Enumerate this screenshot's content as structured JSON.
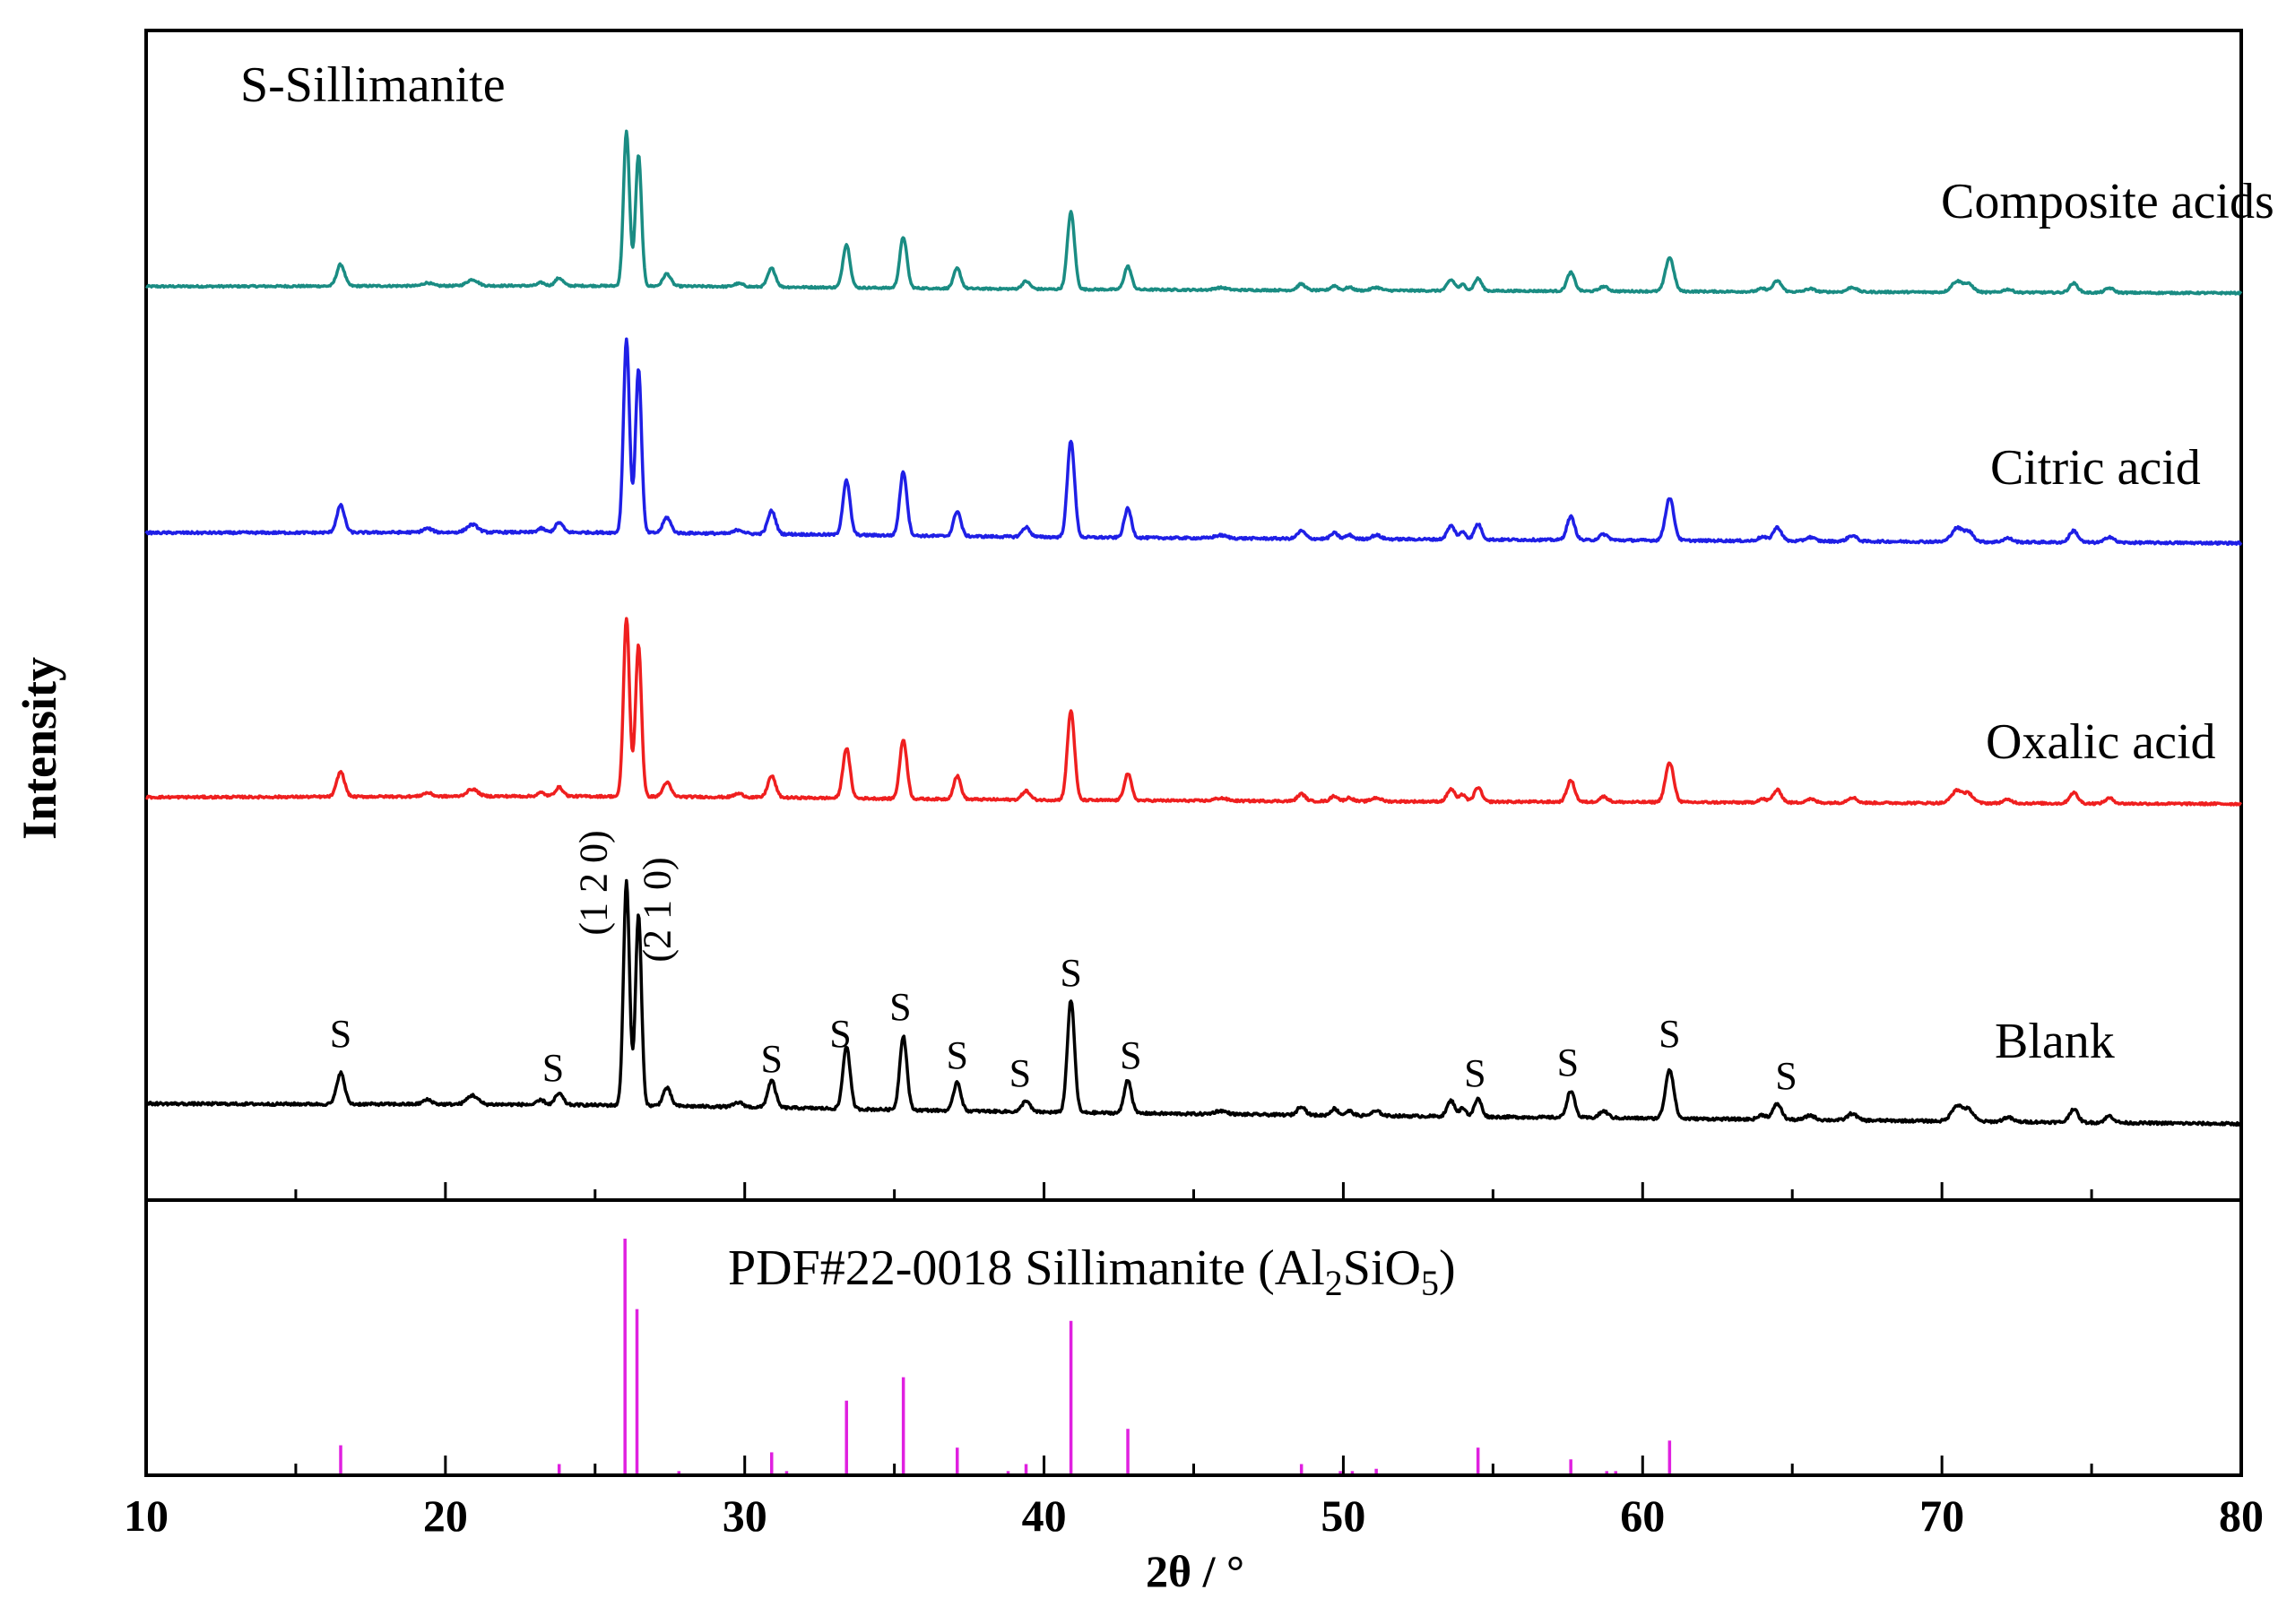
{
  "chart_data": {
    "type": "line",
    "title": "S-Sillimanite",
    "xlabel": "2θ / °",
    "ylabel": "Intensity",
    "xlim": [
      10,
      80
    ],
    "xticks": [
      "10",
      "20",
      "30",
      "40",
      "50",
      "60",
      "70",
      "80"
    ],
    "colors": {
      "composite": "#1a8c83",
      "citric": "#1f1fe6",
      "oxalic": "#ef1f1f",
      "blank": "#000000",
      "reference": "#e020e0"
    },
    "peaks": [
      {
        "two_theta": 16.5,
        "rel": 0.14,
        "w": 0.13
      },
      {
        "two_theta": 19.4,
        "rel": 0.02,
        "w": 0.15
      },
      {
        "two_theta": 20.9,
        "rel": 0.04,
        "w": 0.18
      },
      {
        "two_theta": 23.2,
        "rel": 0.02,
        "w": 0.12
      },
      {
        "two_theta": 23.8,
        "rel": 0.05,
        "w": 0.13
      },
      {
        "two_theta": 26.05,
        "rel": 1.0,
        "w": 0.1
      },
      {
        "two_theta": 26.45,
        "rel": 0.85,
        "w": 0.1
      },
      {
        "two_theta": 27.4,
        "rel": 0.08,
        "w": 0.13
      },
      {
        "two_theta": 29.8,
        "rel": 0.02,
        "w": 0.15
      },
      {
        "two_theta": 30.9,
        "rel": 0.12,
        "w": 0.13
      },
      {
        "two_theta": 33.4,
        "rel": 0.28,
        "w": 0.12
      },
      {
        "two_theta": 35.3,
        "rel": 0.33,
        "w": 0.12
      },
      {
        "two_theta": 37.1,
        "rel": 0.13,
        "w": 0.12
      },
      {
        "two_theta": 39.4,
        "rel": 0.05,
        "w": 0.13
      },
      {
        "two_theta": 40.9,
        "rel": 0.5,
        "w": 0.12
      },
      {
        "two_theta": 42.8,
        "rel": 0.15,
        "w": 0.12
      },
      {
        "two_theta": 45.9,
        "rel": 0.015,
        "w": 0.2
      },
      {
        "two_theta": 48.6,
        "rel": 0.04,
        "w": 0.13
      },
      {
        "two_theta": 49.7,
        "rel": 0.03,
        "w": 0.12
      },
      {
        "two_theta": 50.2,
        "rel": 0.02,
        "w": 0.12
      },
      {
        "two_theta": 51.1,
        "rel": 0.02,
        "w": 0.15
      },
      {
        "two_theta": 53.6,
        "rel": 0.07,
        "w": 0.13
      },
      {
        "two_theta": 54.0,
        "rel": 0.04,
        "w": 0.1
      },
      {
        "two_theta": 54.5,
        "rel": 0.08,
        "w": 0.12
      },
      {
        "two_theta": 57.6,
        "rel": 0.12,
        "w": 0.13
      },
      {
        "two_theta": 58.7,
        "rel": 0.03,
        "w": 0.14
      },
      {
        "two_theta": 60.9,
        "rel": 0.22,
        "w": 0.14
      },
      {
        "two_theta": 64.0,
        "rel": 0.02,
        "w": 0.14
      },
      {
        "two_theta": 64.5,
        "rel": 0.07,
        "w": 0.14
      },
      {
        "two_theta": 65.6,
        "rel": 0.02,
        "w": 0.15
      },
      {
        "two_theta": 67.0,
        "rel": 0.03,
        "w": 0.15
      },
      {
        "two_theta": 70.5,
        "rel": 0.07,
        "w": 0.18
      },
      {
        "two_theta": 70.9,
        "rel": 0.05,
        "w": 0.16
      },
      {
        "two_theta": 72.2,
        "rel": 0.02,
        "w": 0.15
      },
      {
        "two_theta": 74.4,
        "rel": 0.06,
        "w": 0.14
      },
      {
        "two_theta": 75.6,
        "rel": 0.03,
        "w": 0.14
      }
    ],
    "series": [
      {
        "name": "Composite acids",
        "key": "composite",
        "offset": 3,
        "height": 1.0,
        "color_key": "composite"
      },
      {
        "name": "Citric acid",
        "key": "citric",
        "offset": 2,
        "height": 1.26,
        "color_key": "citric"
      },
      {
        "name": "Oxalic acid",
        "key": "oxalic",
        "offset": 1,
        "height": 1.16,
        "color_key": "oxalic"
      },
      {
        "name": "Blank",
        "key": "blank",
        "offset": 0,
        "height": 1.46,
        "color_key": "blank"
      }
    ],
    "hkl_labels": [
      {
        "text": "(1 2 0)",
        "two_theta": 25.8
      },
      {
        "text": "(2 1 0)",
        "two_theta": 27.8
      }
    ],
    "phase_marks": [
      {
        "label": "S",
        "two_theta": 16.5
      },
      {
        "label": "S",
        "two_theta": 23.6
      },
      {
        "label": "S",
        "two_theta": 30.9
      },
      {
        "label": "S",
        "two_theta": 33.2
      },
      {
        "label": "S",
        "two_theta": 35.2
      },
      {
        "label": "S",
        "two_theta": 37.1
      },
      {
        "label": "S",
        "two_theta": 39.2
      },
      {
        "label": "S",
        "two_theta": 40.9
      },
      {
        "label": "S",
        "two_theta": 42.9
      },
      {
        "label": "S",
        "two_theta": 54.4
      },
      {
        "label": "S",
        "two_theta": 57.5
      },
      {
        "label": "S",
        "two_theta": 60.9
      },
      {
        "label": "S",
        "two_theta": 64.8
      }
    ],
    "reference": {
      "label_prefix": "PDF#22-0018   Sillimanite (Al",
      "sub1": "2",
      "label_mid": "SiO",
      "sub2": "5",
      "label_suffix": ")",
      "sticks": [
        {
          "two_theta": 16.5,
          "intensity": 12
        },
        {
          "two_theta": 23.8,
          "intensity": 4
        },
        {
          "two_theta": 26.0,
          "intensity": 100
        },
        {
          "two_theta": 26.4,
          "intensity": 70
        },
        {
          "two_theta": 27.8,
          "intensity": 1
        },
        {
          "two_theta": 30.9,
          "intensity": 9
        },
        {
          "two_theta": 31.4,
          "intensity": 1
        },
        {
          "two_theta": 33.4,
          "intensity": 31
        },
        {
          "two_theta": 35.3,
          "intensity": 41
        },
        {
          "two_theta": 37.1,
          "intensity": 11
        },
        {
          "two_theta": 38.8,
          "intensity": 1
        },
        {
          "two_theta": 39.4,
          "intensity": 4
        },
        {
          "two_theta": 40.9,
          "intensity": 65
        },
        {
          "two_theta": 42.8,
          "intensity": 19
        },
        {
          "two_theta": 48.6,
          "intensity": 4
        },
        {
          "two_theta": 49.9,
          "intensity": 1
        },
        {
          "two_theta": 50.3,
          "intensity": 1
        },
        {
          "two_theta": 51.1,
          "intensity": 2
        },
        {
          "two_theta": 54.5,
          "intensity": 11
        },
        {
          "two_theta": 57.6,
          "intensity": 6
        },
        {
          "two_theta": 58.8,
          "intensity": 1
        },
        {
          "two_theta": 59.1,
          "intensity": 1
        },
        {
          "two_theta": 60.9,
          "intensity": 14
        }
      ]
    }
  }
}
